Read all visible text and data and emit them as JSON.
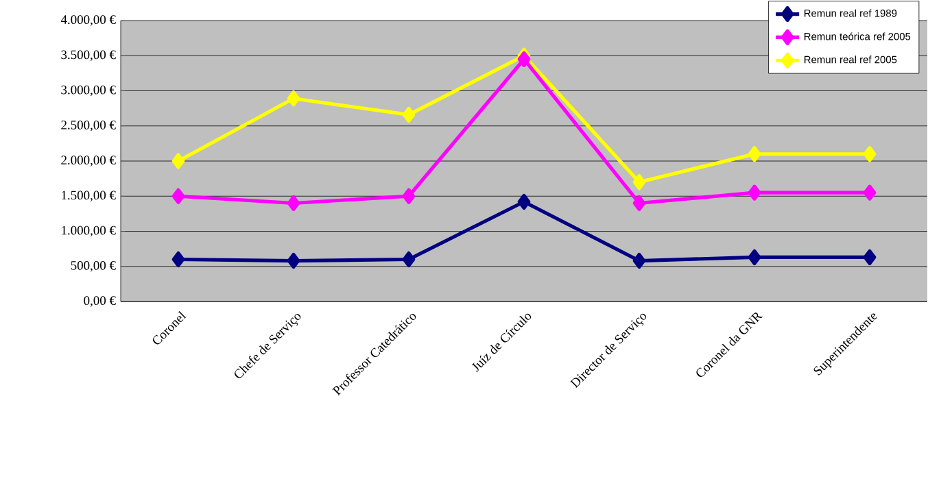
{
  "chart_data": {
    "type": "line",
    "categories": [
      "Coronel",
      "Chefe de Serviço",
      "Professor Catedrático",
      "Juíz de Círculo",
      "Director de Serviço",
      "Coronel da GNR",
      "Superintendente"
    ],
    "series": [
      {
        "name": "Remun real ref 1989",
        "color": "#000080",
        "values": [
          600,
          580,
          600,
          1420,
          580,
          630,
          630
        ]
      },
      {
        "name": "Remun teórica ref 2005",
        "color": "#ff00ff",
        "values": [
          1500,
          1400,
          1500,
          3450,
          1400,
          1550,
          1550
        ]
      },
      {
        "name": "Remun real ref 2005",
        "color": "#ffff00",
        "values": [
          2000,
          2890,
          2660,
          3500,
          1700,
          2100,
          2100
        ]
      }
    ],
    "ylim": [
      0,
      4000
    ],
    "yticks": [
      {
        "value": 0,
        "label": "0,00 €"
      },
      {
        "value": 500,
        "label": "500,00 €"
      },
      {
        "value": 1000,
        "label": "1.000,00 €"
      },
      {
        "value": 1500,
        "label": "1.500,00 €"
      },
      {
        "value": 2000,
        "label": "2.000,00 €"
      },
      {
        "value": 2500,
        "label": "2.500,00 €"
      },
      {
        "value": 3000,
        "label": "3.000,00 €"
      },
      {
        "value": 3500,
        "label": "3.500,00 €"
      },
      {
        "value": 4000,
        "label": "4.000,00 €"
      }
    ],
    "grid": "y",
    "legend": "top right",
    "marker": "diamond",
    "line_style": "solid"
  }
}
